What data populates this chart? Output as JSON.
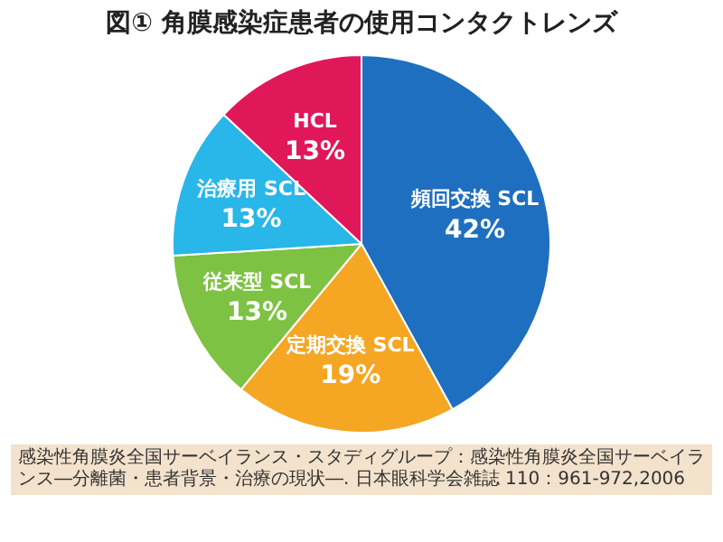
{
  "chart_data": {
    "type": "pie",
    "title": "図① 角膜感染症患者の使用コンタクトレンズ",
    "categories": [
      "頻回交換 SCL",
      "定期交換 SCL",
      "従来型 SCL",
      "治療用 SCL",
      "HCL"
    ],
    "values": [
      42,
      19,
      13,
      13,
      13
    ],
    "value_labels": [
      "42%",
      "19%",
      "13%",
      "13%",
      "13%"
    ],
    "colors": [
      "#1f6fc0",
      "#f5a623",
      "#7dc242",
      "#29b6e8",
      "#e0185a"
    ],
    "annotations": [
      "感染性角膜炎全国サーベイランス・スタディグループ：感染性角膜炎全国サーベイランス―分離菌・患者背景・治療の現状―. 日本眼科学会雑誌 110：961-972,2006"
    ],
    "legend": false
  }
}
